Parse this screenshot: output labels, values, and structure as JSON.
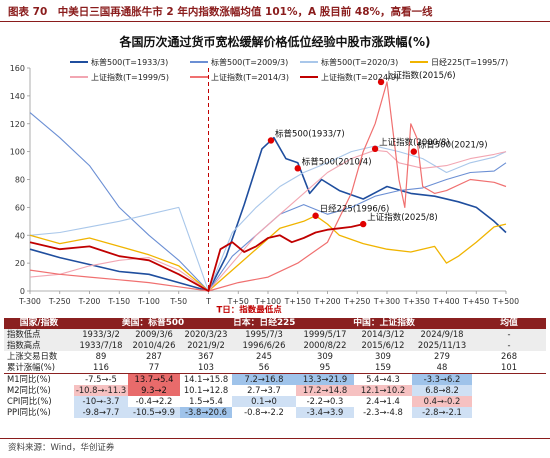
{
  "header": "图表 70　中美日三国再通胀牛市 2 年内指数涨幅均值 101%，A 股目前 48%，高看一线",
  "chart_data": {
    "type": "line",
    "title": "各国历次通过货币宽松缓解价格低位经验中股市涨跌幅(%)",
    "ylim": [
      0,
      160
    ],
    "yticks": [
      0,
      20,
      40,
      60,
      80,
      100,
      120,
      140,
      160
    ],
    "xlim": [
      -300,
      500
    ],
    "xticks": [
      "T-300",
      "T-250",
      "T-200",
      "T-150",
      "T-100",
      "T-50",
      "T",
      "T+50",
      "T+100",
      "T+150",
      "T+200",
      "T+250",
      "T+300",
      "T+350",
      "T+400",
      "T+450",
      "T+500"
    ],
    "t_label": "T日：指数最低点",
    "legend_position": "top",
    "series": [
      {
        "name": "标普500(T=1933/3)",
        "color": "#1f4e9e",
        "width": 1.6,
        "x": [
          -300,
          -250,
          -200,
          -150,
          -100,
          -50,
          0,
          30,
          60,
          90,
          110,
          130,
          150,
          170,
          190,
          220,
          260,
          300,
          340,
          380,
          420,
          450,
          480,
          500
        ],
        "y": [
          30,
          24,
          19,
          14,
          12,
          6,
          0,
          25,
          62,
          102,
          110,
          95,
          92,
          70,
          80,
          72,
          66,
          75,
          70,
          68,
          64,
          60,
          50,
          42
        ]
      },
      {
        "name": "标普500(T=2009/3)",
        "color": "#6b8fd4",
        "width": 1.1,
        "x": [
          -300,
          -250,
          -200,
          -150,
          -100,
          -50,
          0,
          40,
          80,
          120,
          160,
          200,
          240,
          280,
          320,
          360,
          400,
          440,
          480,
          500
        ],
        "y": [
          128,
          110,
          90,
          60,
          40,
          22,
          0,
          25,
          40,
          55,
          62,
          55,
          60,
          68,
          72,
          74,
          80,
          85,
          86,
          92
        ]
      },
      {
        "name": "标普500(T=2020/3)",
        "color": "#a9c7ea",
        "width": 1.1,
        "x": [
          -300,
          -250,
          -200,
          -150,
          -100,
          -50,
          0,
          40,
          80,
          120,
          160,
          200,
          240,
          280,
          320,
          360,
          400,
          440,
          480,
          500
        ],
        "y": [
          40,
          42,
          46,
          50,
          55,
          60,
          0,
          42,
          60,
          75,
          85,
          92,
          100,
          104,
          100,
          95,
          85,
          92,
          96,
          100
        ]
      },
      {
        "name": "日经225(T=1995/7)",
        "color": "#f0b400",
        "width": 1.3,
        "x": [
          -300,
          -250,
          -200,
          -150,
          -100,
          -50,
          0,
          40,
          80,
          120,
          160,
          180,
          200,
          220,
          260,
          300,
          340,
          380,
          400,
          420,
          450,
          480,
          500
        ],
        "y": [
          40,
          34,
          38,
          32,
          26,
          18,
          0,
          15,
          30,
          45,
          50,
          54,
          48,
          40,
          34,
          30,
          28,
          32,
          20,
          25,
          35,
          46,
          48
        ]
      },
      {
        "name": "上证指数(T=1999/5)",
        "color": "#f2a6b2",
        "width": 1.1,
        "x": [
          -300,
          -250,
          -200,
          -150,
          -100,
          -50,
          0,
          40,
          80,
          120,
          160,
          200,
          240,
          280,
          300,
          320,
          360,
          400,
          440,
          480,
          500
        ],
        "y": [
          10,
          12,
          18,
          22,
          24,
          15,
          0,
          20,
          40,
          55,
          70,
          85,
          95,
          101,
          100,
          92,
          88,
          90,
          95,
          98,
          100
        ]
      },
      {
        "name": "上证指数(T=2014/3)",
        "color": "#f07070",
        "width": 1.2,
        "x": [
          -300,
          -250,
          -200,
          -150,
          -100,
          -50,
          0,
          50,
          100,
          150,
          200,
          240,
          260,
          280,
          290,
          300,
          310,
          320,
          330,
          340,
          350,
          360,
          380,
          400,
          440,
          480,
          500
        ],
        "y": [
          15,
          12,
          10,
          8,
          6,
          3,
          0,
          6,
          10,
          20,
          35,
          70,
          100,
          120,
          135,
          150,
          115,
          80,
          60,
          120,
          110,
          75,
          70,
          72,
          80,
          78,
          75
        ]
      },
      {
        "name": "上证指数(T=2024/9)",
        "color": "#c00000",
        "width": 1.8,
        "x": [
          -300,
          -250,
          -200,
          -150,
          -100,
          -50,
          0,
          20,
          40,
          60,
          80,
          100,
          120,
          140,
          160,
          180,
          200,
          220,
          240,
          260
        ],
        "y": [
          35,
          30,
          32,
          25,
          22,
          12,
          0,
          30,
          35,
          28,
          32,
          38,
          40,
          35,
          38,
          42,
          44,
          45,
          46,
          48
        ]
      }
    ],
    "annotations": [
      {
        "text": "标普500(1933/7)",
        "x": 105,
        "y": 108
      },
      {
        "text": "标普500(2010/4)",
        "x": 150,
        "y": 88
      },
      {
        "text": "上证指数(2000/8)",
        "x": 280,
        "y": 102
      },
      {
        "text": "上证指数(2015/6)",
        "x": 290,
        "y": 150
      },
      {
        "text": "标普500(2021/9)",
        "x": 345,
        "y": 100
      },
      {
        "text": "日经225(1996/6)",
        "x": 180,
        "y": 54
      },
      {
        "text": "上证指数(2025/8)",
        "x": 260,
        "y": 48
      }
    ]
  },
  "table": {
    "headers": [
      "国家/指数",
      "美国：标普500",
      "日本：日经225",
      "中国：上证指数",
      "均值"
    ],
    "rows": [
      {
        "label": "指数低点",
        "cells": [
          "1933/3/2",
          "2009/3/6",
          "2020/3/23",
          "1995/7/3",
          "1999/5/17",
          "2014/3/12",
          "2024/9/18",
          "-"
        ],
        "grey": true
      },
      {
        "label": "指数高点",
        "cells": [
          "1933/7/18",
          "2010/4/26",
          "2021/9/2",
          "1996/6/26",
          "2000/8/22",
          "2015/6/12",
          "2025/11/13",
          "-"
        ],
        "grey": true
      },
      {
        "label": "上涨交易日数",
        "cells": [
          "89",
          "287",
          "367",
          "245",
          "309",
          "309",
          "279",
          "268"
        ],
        "grey": false
      },
      {
        "label": "累计涨幅(%)",
        "cells": [
          "116",
          "77",
          "103",
          "56",
          "95",
          "159",
          "48",
          "101"
        ],
        "grey": false
      },
      {
        "label": "M1同比(%)",
        "cells": [
          "-7.5→-5",
          "13.7→5.4",
          "14.1→15.8",
          "7.2→16.8",
          "13.3→21.9",
          "5.4→4.3",
          "-3.3→6.2",
          ""
        ],
        "grey": false,
        "colors": [
          "",
          "red",
          "",
          "blue",
          "blue",
          "",
          "blue",
          ""
        ]
      },
      {
        "label": "M2同比(%)",
        "cells": [
          "-10.8→-11.3",
          "9.3→2",
          "10.1→12.8",
          "2.7→3.7",
          "17.2→14.8",
          "12.1→10.2",
          "6.8→8.2",
          ""
        ],
        "grey": false,
        "colors": [
          "lred",
          "red",
          "",
          "",
          "lred",
          "lred",
          "lblue",
          ""
        ]
      },
      {
        "label": "CPI同比(%)",
        "cells": [
          "-10→-3.7",
          "-0.4→2.2",
          "1.5→5.4",
          "0.1→0",
          "-2.2→0.3",
          "2.4→1.4",
          "0.4→-0.2",
          ""
        ],
        "grey": false,
        "colors": [
          "lblue",
          "",
          "",
          "lblue",
          "",
          "",
          "lred",
          ""
        ]
      },
      {
        "label": "PPI同比(%)",
        "cells": [
          "-9.8→7.7",
          "-10.5→9.9",
          "-3.8→20.6",
          "-0.8→-2.2",
          "-3.4→3.9",
          "-2.3→-4.8",
          "-2.8→-2.1",
          ""
        ],
        "grey": false,
        "colors": [
          "lblue",
          "lblue",
          "blue",
          "",
          "lblue",
          "",
          "lblue",
          ""
        ]
      }
    ]
  },
  "source": "资料来源：Wind，华创证券"
}
